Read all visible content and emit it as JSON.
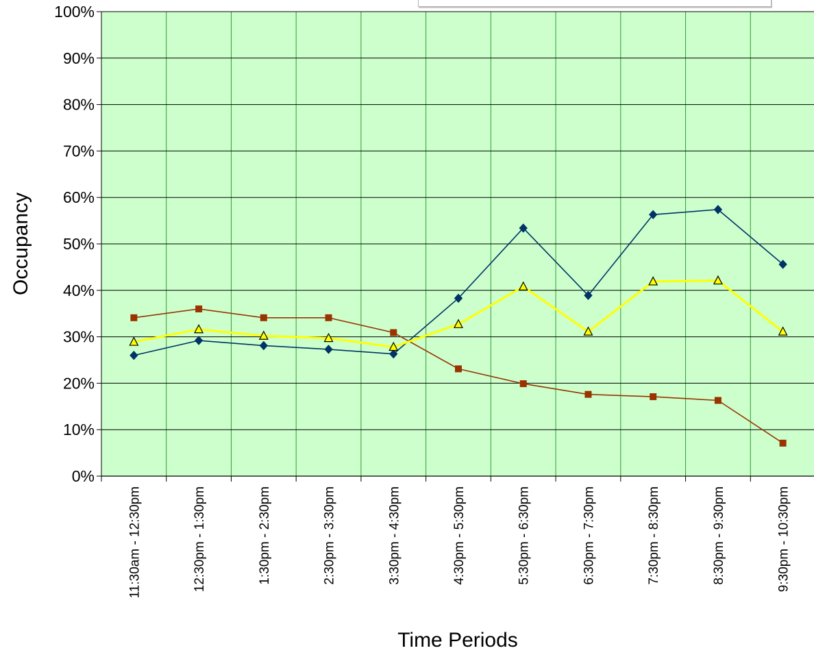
{
  "chart_data": {
    "type": "line",
    "title": "",
    "xlabel": "Time Periods",
    "ylabel": "Occupancy",
    "ylim": [
      0,
      100
    ],
    "y_ticks": [
      0,
      10,
      20,
      30,
      40,
      50,
      60,
      70,
      80,
      90,
      100
    ],
    "y_tick_suffix": "%",
    "grid": true,
    "legend": "top-right",
    "plot_background": "#CCFFCC",
    "gridline_color": "#000000",
    "vertical_grid_color": "#339933",
    "categories": [
      "11:30am - 12:30pm",
      "12:30pm - 1:30pm",
      "1:30pm - 2:30pm",
      "2:30pm - 3:30pm",
      "3:30pm - 4:30pm",
      "4:30pm - 5:30pm",
      "5:30pm - 6:30pm",
      "6:30pm - 7:30pm",
      "7:30pm - 8:30pm",
      "8:30pm - 9:30pm",
      "9:30pm - 10:30pm"
    ],
    "series": [
      {
        "color": "#003366",
        "marker": "diamond",
        "values": [
          26,
          29.2,
          28.1,
          27.3,
          26.3,
          38.3,
          53.4,
          38.9,
          56.3,
          57.4,
          45.6
        ]
      },
      {
        "color": "#993300",
        "marker": "square",
        "values": [
          34.1,
          36,
          34.1,
          34.1,
          30.9,
          23.1,
          19.9,
          17.6,
          17.1,
          16.3,
          7.1
        ]
      },
      {
        "color": "#FFFF00",
        "marker": "triangle",
        "values": [
          28.9,
          31.6,
          30.2,
          29.7,
          27.8,
          32.7,
          40.8,
          31.1,
          41.9,
          42.1,
          31.1
        ]
      }
    ]
  }
}
